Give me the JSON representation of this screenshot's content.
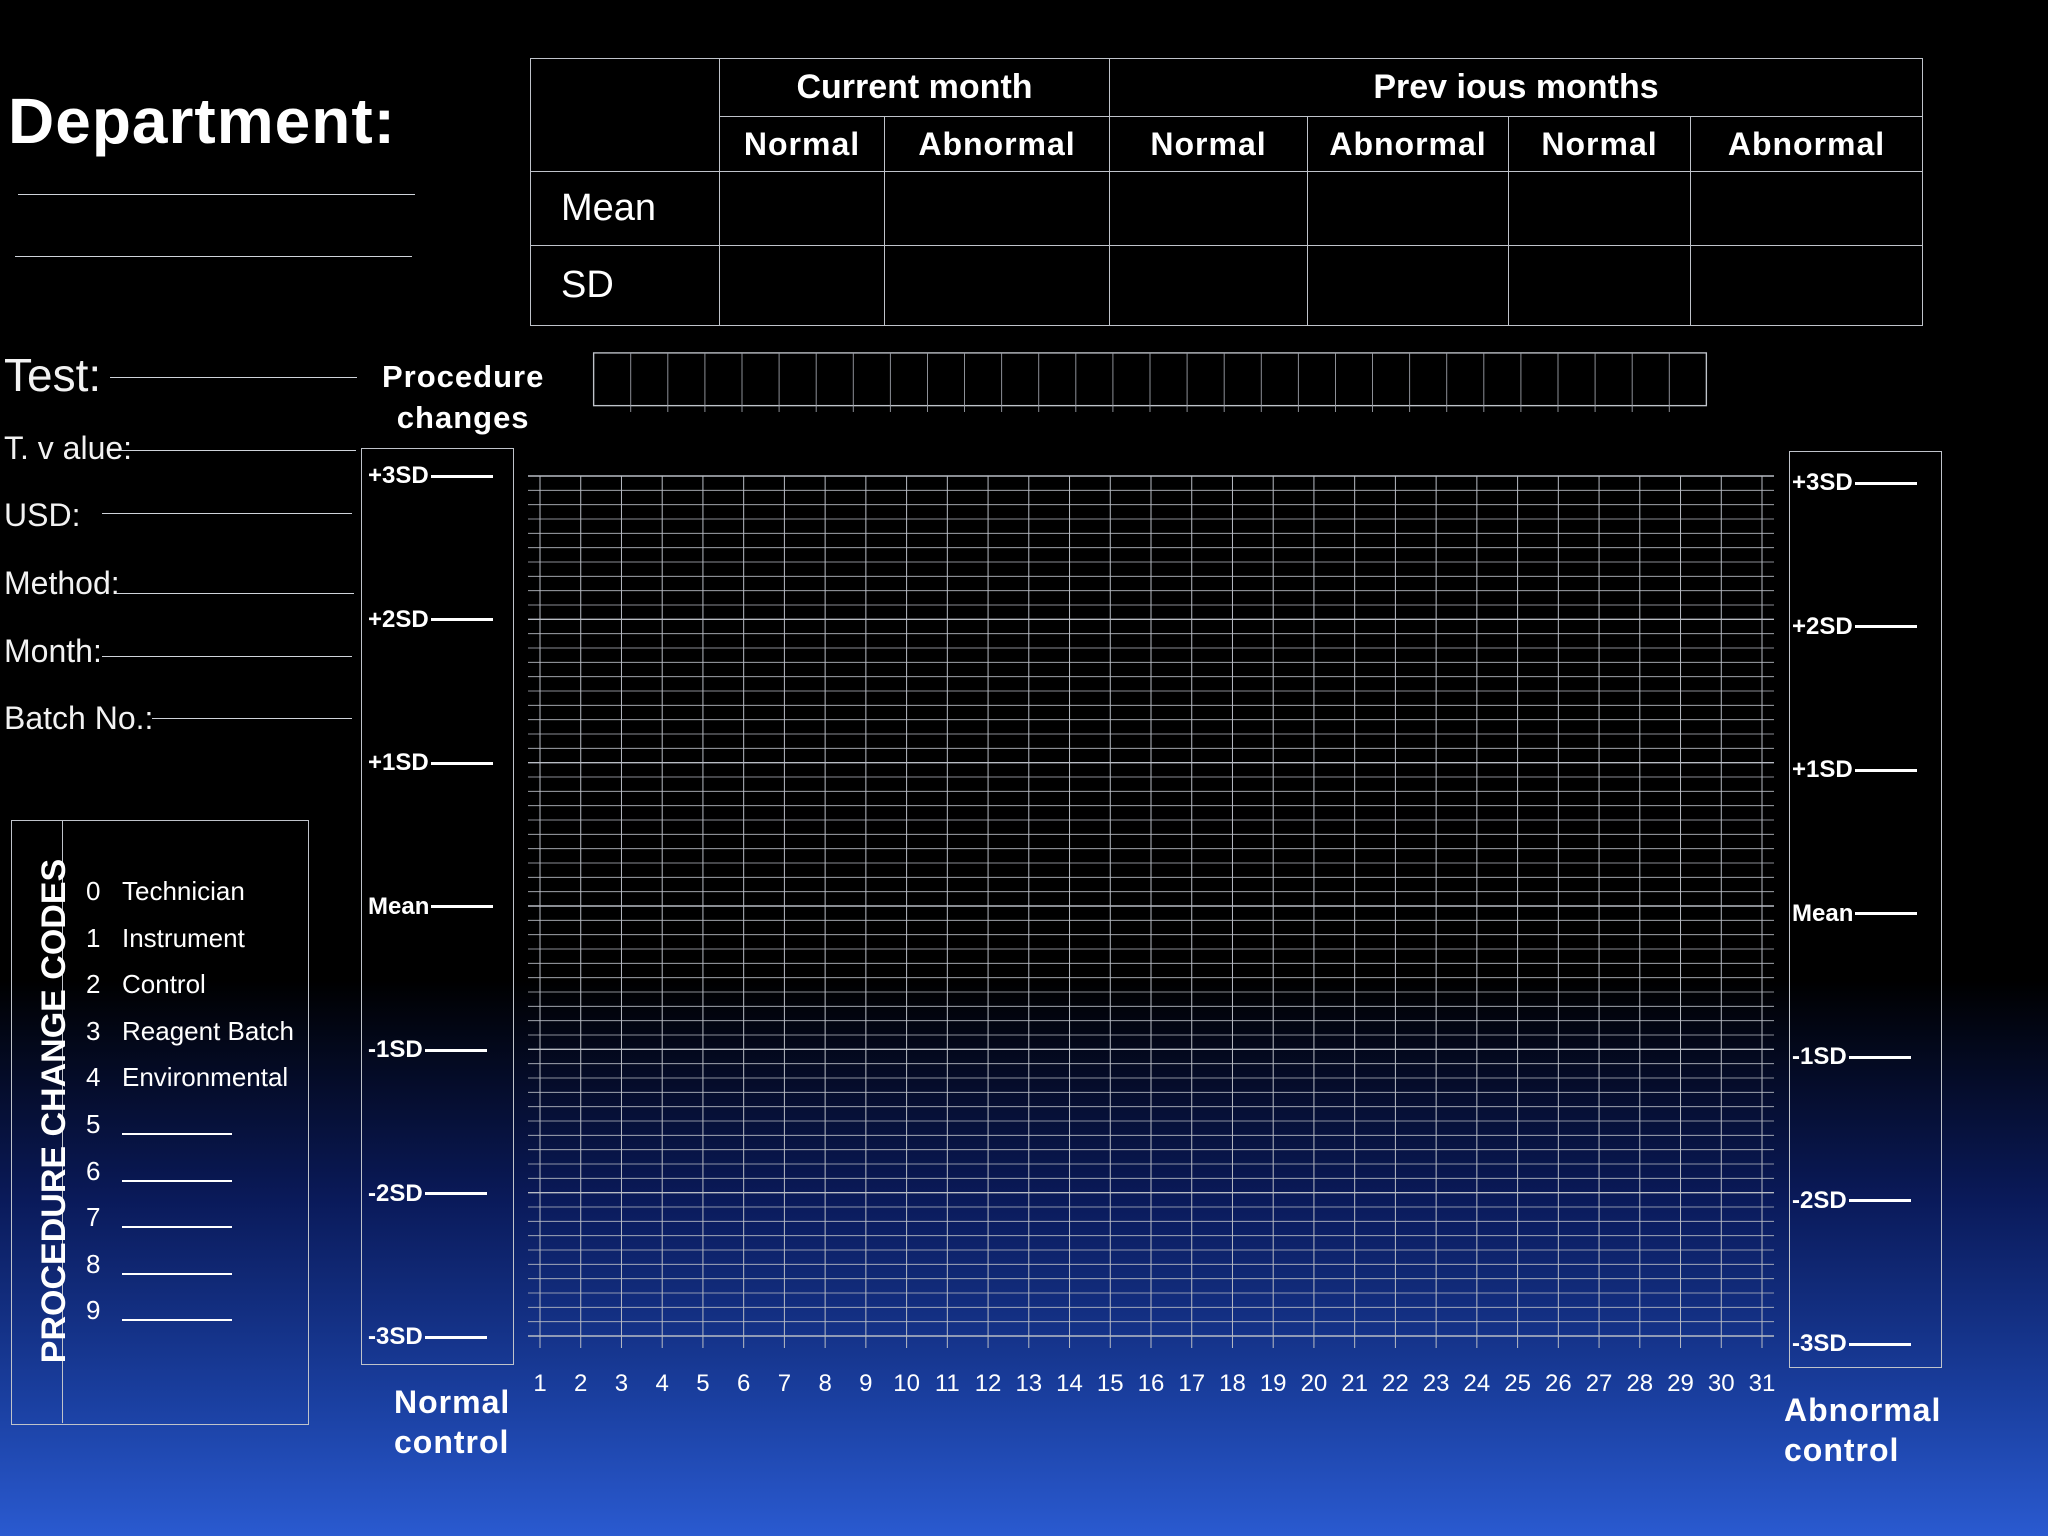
{
  "department": {
    "label": "Department:"
  },
  "fields": {
    "test": "Test:",
    "t_value": "T. v alue:",
    "usd": "USD:",
    "method": "Method:",
    "month": "Month:",
    "batch": "Batch No.:"
  },
  "summary_table": {
    "current_month": "Current month",
    "previous_months": "Prev ious months",
    "columns": [
      "Normal",
      "Abnormal",
      "Normal",
      "Abnormal",
      "Normal",
      "Abnormal"
    ],
    "rows": [
      "Mean",
      "SD"
    ]
  },
  "procedure_changes": {
    "label_line1": "Procedure",
    "label_line2": "changes",
    "cell_count": 30
  },
  "sd_levels": [
    "+3SD",
    "+2SD",
    "+1SD",
    "Mean",
    "-1SD",
    "-2SD",
    "-3SD"
  ],
  "days": [
    "1",
    "2",
    "3",
    "4",
    "5",
    "6",
    "7",
    "8",
    "9",
    "10",
    "11",
    "12",
    "13",
    "14",
    "15",
    "16",
    "17",
    "18",
    "19",
    "20",
    "21",
    "22",
    "23",
    "24",
    "25",
    "26",
    "27",
    "28",
    "29",
    "30",
    "31"
  ],
  "normal_control": {
    "line1": "Normal",
    "line2": "control"
  },
  "abnormal_control": {
    "line1": "Abnormal",
    "line2": "control"
  },
  "procedure_change_codes": {
    "title": "PROCEDURE CHANGE CODES",
    "items": [
      {
        "num": "0",
        "label": "Technician"
      },
      {
        "num": "1",
        "label": "Instrument"
      },
      {
        "num": "2",
        "label": "Control"
      },
      {
        "num": "3",
        "label": "Reagent Batch"
      },
      {
        "num": "4",
        "label": "Environmental"
      },
      {
        "num": "5",
        "label": ""
      },
      {
        "num": "6",
        "label": ""
      },
      {
        "num": "7",
        "label": ""
      },
      {
        "num": "8",
        "label": ""
      },
      {
        "num": "9",
        "label": ""
      }
    ]
  },
  "colors": {
    "grid_line": "#b8bcc4",
    "background_top": "#000000",
    "background_bottom": "#2a5ad0"
  }
}
